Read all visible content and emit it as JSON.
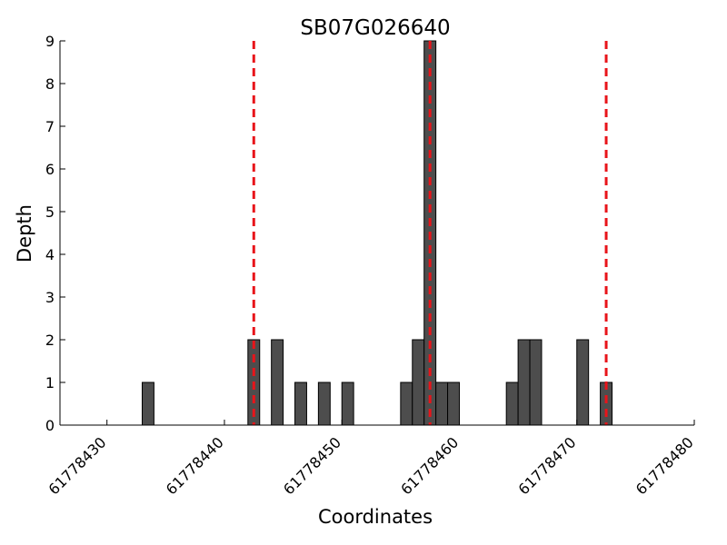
{
  "chart_data": {
    "type": "bar",
    "title": "SB07G026640",
    "xlabel": "Coordinates",
    "ylabel": "Depth",
    "xlim": [
      61778426,
      61778480
    ],
    "ylim": [
      0,
      9
    ],
    "x_ticks": [
      61778430,
      61778440,
      61778450,
      61778460,
      61778470,
      61778480
    ],
    "y_ticks": [
      0,
      1,
      2,
      3,
      4,
      5,
      6,
      7,
      8,
      9
    ],
    "bar_width": 1,
    "bars": [
      {
        "x": 61778433,
        "value": 1
      },
      {
        "x": 61778442,
        "value": 2
      },
      {
        "x": 61778444,
        "value": 2
      },
      {
        "x": 61778446,
        "value": 1
      },
      {
        "x": 61778448,
        "value": 1
      },
      {
        "x": 61778450,
        "value": 1
      },
      {
        "x": 61778455,
        "value": 1
      },
      {
        "x": 61778456,
        "value": 2
      },
      {
        "x": 61778457,
        "value": 9
      },
      {
        "x": 61778458,
        "value": 1
      },
      {
        "x": 61778459,
        "value": 1
      },
      {
        "x": 61778464,
        "value": 1
      },
      {
        "x": 61778465,
        "value": 2
      },
      {
        "x": 61778466,
        "value": 2
      },
      {
        "x": 61778470,
        "value": 2
      },
      {
        "x": 61778472,
        "value": 1
      }
    ],
    "vertical_lines": [
      {
        "x": 61778442,
        "style": "dashed",
        "color": "#e8141a"
      },
      {
        "x": 61778457,
        "style": "dashed",
        "color": "#e8141a"
      },
      {
        "x": 61778472,
        "style": "dashed",
        "color": "#e8141a"
      }
    ],
    "bar_color": "#4d4d4d",
    "grid": false,
    "legend": "none"
  }
}
